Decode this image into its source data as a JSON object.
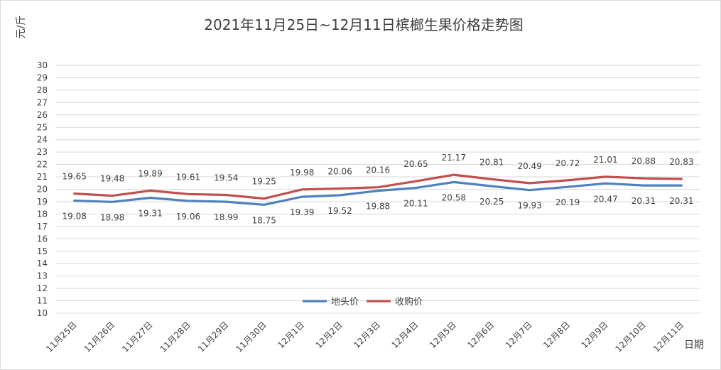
{
  "chart_data": {
    "type": "line",
    "title": "2021年11月25日~12月11日槟榔生果价格走势图",
    "ylabel": "元/斤",
    "xlabel": "日期",
    "ylim": [
      10,
      30
    ],
    "y_ticks": [
      "10",
      "11",
      "12",
      "13",
      "14",
      "15",
      "16",
      "17",
      "18",
      "19",
      "20",
      "21",
      "22",
      "23",
      "24",
      "25",
      "26",
      "27",
      "28",
      "29",
      "30"
    ],
    "grid": true,
    "legend_position": "bottom-center",
    "categories": [
      "11月25日",
      "11月26日",
      "11月27日",
      "11月28日",
      "11月29日",
      "11月30日",
      "12月1日",
      "12月2日",
      "12月3日",
      "12月4日",
      "12月5日",
      "12月6日",
      "12月7日",
      "12月8日",
      "12月9日",
      "12月10日",
      "12月11日"
    ],
    "series": [
      {
        "name": "地头价",
        "color": "#4f81bd",
        "values": [
          19.08,
          18.98,
          19.31,
          19.06,
          18.99,
          18.75,
          19.39,
          19.52,
          19.88,
          20.11,
          20.58,
          20.25,
          19.93,
          20.19,
          20.47,
          20.31,
          20.31
        ],
        "labels": [
          "19.08",
          "18.98",
          "19.31",
          "19.06",
          "18.99",
          "18.75",
          "19.39",
          "19.52",
          "19.88",
          "20.11",
          "20.58",
          "20.25",
          "19.93",
          "20.19",
          "20.47",
          "20.31",
          "20.31"
        ]
      },
      {
        "name": "收购价",
        "color": "#c0504d",
        "values": [
          19.65,
          19.48,
          19.89,
          19.61,
          19.54,
          19.25,
          19.98,
          20.06,
          20.16,
          20.65,
          21.17,
          20.81,
          20.49,
          20.72,
          21.01,
          20.88,
          20.83
        ],
        "labels": [
          "19.65",
          "19.48",
          "19.89",
          "19.61",
          "19.54",
          "19.25",
          "19.98",
          "20.06",
          "20.16",
          "20.65",
          "21.17",
          "20.81",
          "20.49",
          "20.72",
          "21.01",
          "20.88",
          "20.83"
        ]
      }
    ]
  }
}
